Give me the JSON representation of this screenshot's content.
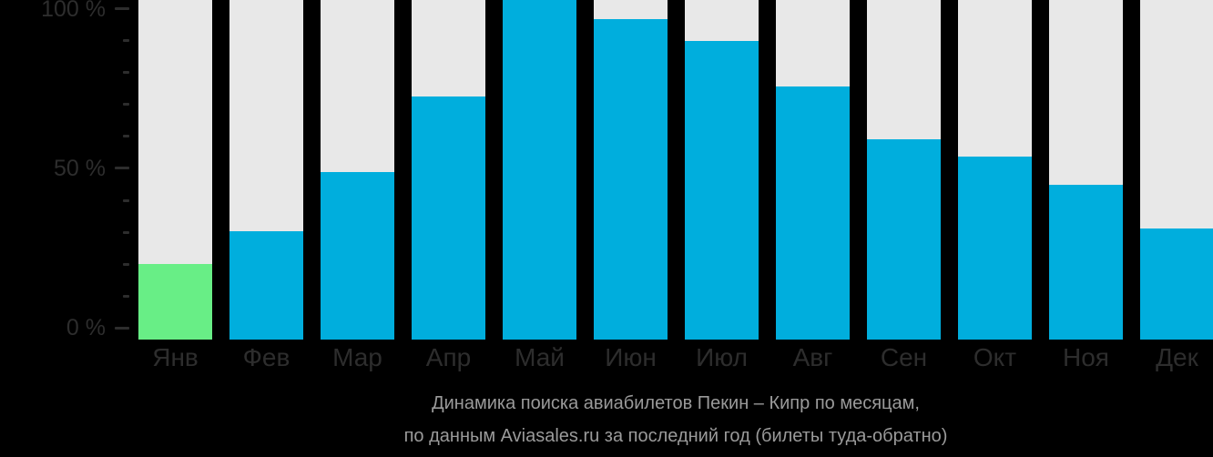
{
  "chart_data": {
    "type": "bar",
    "title": "Динамика поиска авиабилетов Пекин – Кипр по месяцам,",
    "subtitle": "по данным Aviasales.ru за последний год (билеты туда-обратно)",
    "categories": [
      "Янв",
      "Фев",
      "Мар",
      "Апр",
      "Май",
      "Июн",
      "Июл",
      "Авг",
      "Сен",
      "Окт",
      "Ноя",
      "Дек"
    ],
    "values": [
      20,
      30,
      49,
      72,
      100,
      97,
      90,
      76,
      59,
      54,
      45,
      31
    ],
    "unit": "%",
    "xlabel": "",
    "ylabel": "",
    "ylim": [
      0,
      100
    ],
    "y_tick_minor_step": 10,
    "y_tick_labels": [
      "0 %",
      "50 %",
      "100 %"
    ],
    "grid": false,
    "legend": "none",
    "highlight_index": 0
  },
  "months": [
    {
      "label": "Янв",
      "value": 20,
      "bar_pct": 22.3,
      "highlight": true
    },
    {
      "label": "Фев",
      "value": 30,
      "bar_pct": 32.0,
      "highlight": false
    },
    {
      "label": "Мар",
      "value": 49,
      "bar_pct": 49.4,
      "highlight": false
    },
    {
      "label": "Апр",
      "value": 72,
      "bar_pct": 71.7,
      "highlight": false
    },
    {
      "label": "Май",
      "value": 100,
      "bar_pct": 100,
      "highlight": false
    },
    {
      "label": "Июн",
      "value": 97,
      "bar_pct": 94.4,
      "highlight": false
    },
    {
      "label": "Июл",
      "value": 90,
      "bar_pct": 87.9,
      "highlight": false
    },
    {
      "label": "Авг",
      "value": 76,
      "bar_pct": 74.6,
      "highlight": false
    },
    {
      "label": "Сен",
      "value": 59,
      "bar_pct": 59.1,
      "highlight": false
    },
    {
      "label": "Окт",
      "value": 54,
      "bar_pct": 53.8,
      "highlight": false
    },
    {
      "label": "Ноя",
      "value": 45,
      "bar_pct": 45.5,
      "highlight": false
    },
    {
      "label": "Дек",
      "value": 31,
      "bar_pct": 32.8,
      "highlight": false
    }
  ],
  "y_axis": {
    "ticks": [
      {
        "value": 0,
        "label": "0 %",
        "major": true
      },
      {
        "value": 10,
        "major": false
      },
      {
        "value": 20,
        "major": false
      },
      {
        "value": 30,
        "major": false
      },
      {
        "value": 40,
        "major": false
      },
      {
        "value": 50,
        "label": "50 %",
        "major": true
      },
      {
        "value": 60,
        "major": false
      },
      {
        "value": 70,
        "major": false
      },
      {
        "value": 80,
        "major": false
      },
      {
        "value": 90,
        "major": false
      },
      {
        "value": 100,
        "label": "100 %",
        "major": true
      }
    ]
  },
  "colors": {
    "background": "#000000",
    "column_background": "#e8e8e8",
    "bar_default": "#00aedd",
    "bar_highlight": "#68ee86",
    "axis_text": "#2d2d2d",
    "tick_mark": "#2d2d2d",
    "caption_text": "#9a9a9a"
  }
}
